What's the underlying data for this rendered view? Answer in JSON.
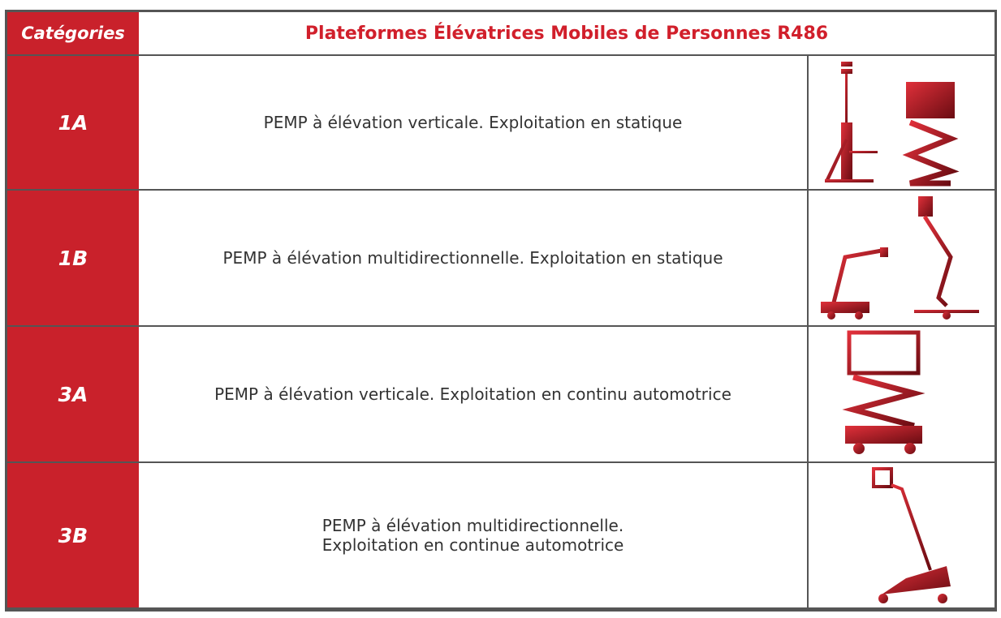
{
  "header": {
    "category_label": "Catégories",
    "title": "Plateformes Élévatrices Mobiles de Personnes R486"
  },
  "rows": [
    {
      "category": "1A",
      "description": [
        "PEMP à élévation verticale. Exploitation en statique"
      ]
    },
    {
      "category": "1B",
      "description": [
        "PEMP à élévation multidirectionnelle. Exploitation en statique"
      ]
    },
    {
      "category": "3A",
      "description": [
        "PEMP à élévation verticale. Exploitation en continu automotrice"
      ]
    },
    {
      "category": "3B",
      "description": [
        "PEMP à élévation multidirectionnelle.",
        "Exploitation en continue automotrice"
      ]
    }
  ]
}
